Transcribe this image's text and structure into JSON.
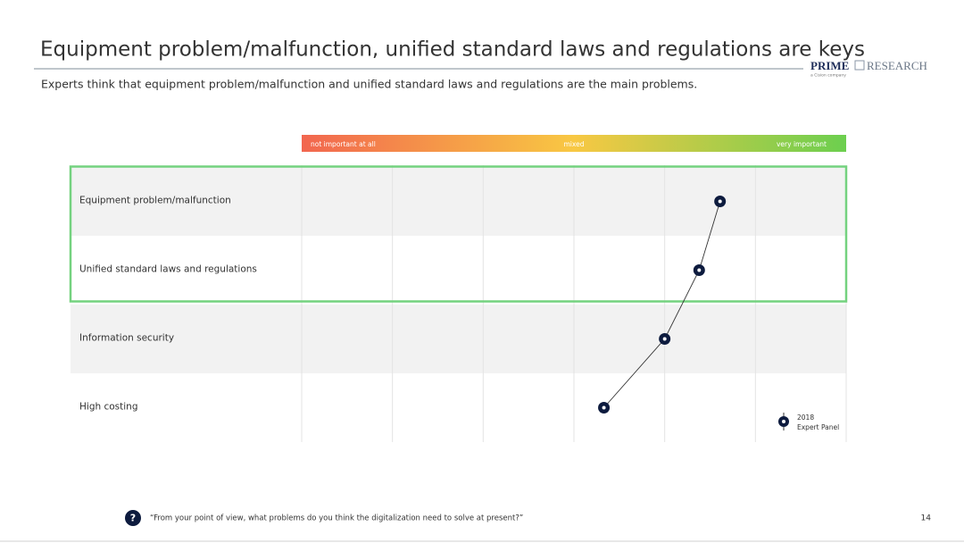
{
  "chart_data": {
    "type": "dot",
    "title": "Equipment problem/malfunction, unified standard laws and regulations are keys",
    "subtitle": "Experts think that equipment problem/malfunction and unified standard laws and regulations are the main problems.",
    "scale_labels": [
      "not important at all",
      "mixed",
      "very important"
    ],
    "categories": [
      "Equipment problem/malfunction",
      "Unified standard laws and regulations",
      "Information security",
      "High costing"
    ],
    "series": [
      {
        "name": "2018\nExpert Panel",
        "color": "#0d1b3e",
        "values": [
          4.61,
          4.38,
          4.0,
          3.33
        ]
      }
    ],
    "xlim": [
      0,
      6
    ]
  },
  "logo": {
    "name": "PRIME",
    "suffix": "RESEARCH",
    "tagline": "a Cision company"
  },
  "footer": {
    "question": "“From your point of view, what problems do you think the digitalization need to solve at present?”",
    "page_number": "14"
  }
}
